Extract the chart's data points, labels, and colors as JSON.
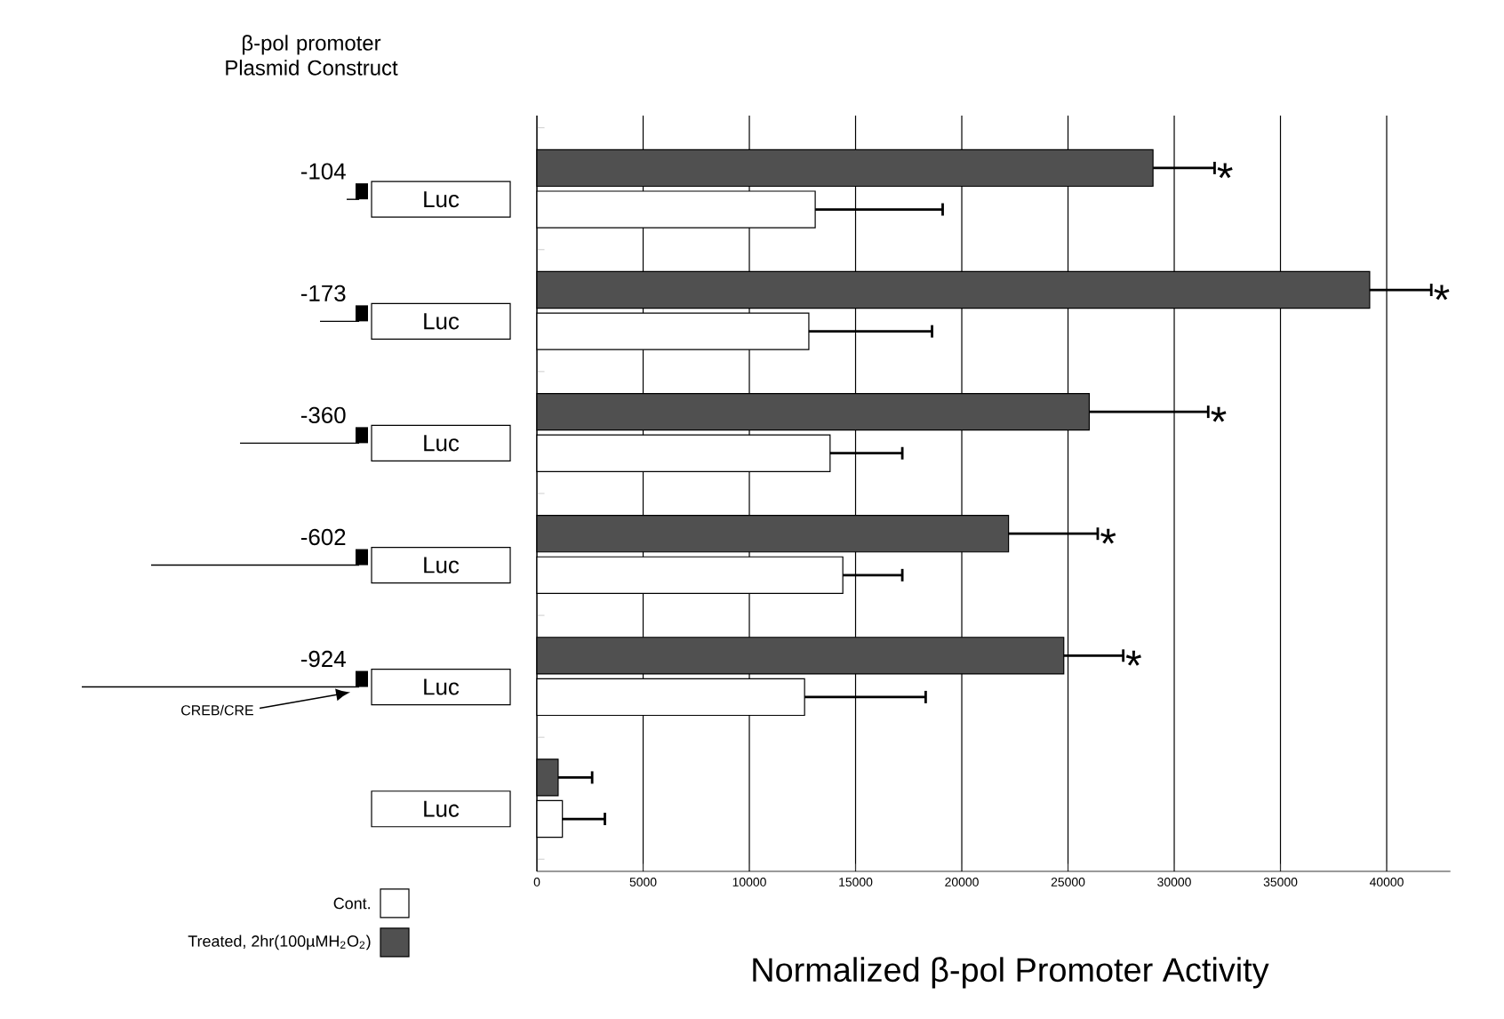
{
  "chart_data": {
    "type": "bar",
    "orientation": "horizontal",
    "xlabel": "Normalized β-pol Promoter Activity",
    "categories": [
      "-104",
      "-173",
      "-360",
      "-602",
      "-924",
      null
    ],
    "series": [
      {
        "name": "Cont.",
        "color": "#ffffff",
        "values": [
          13100,
          12800,
          13800,
          14400,
          12600,
          1200
        ],
        "errors": [
          6000,
          5800,
          3400,
          2800,
          5700,
          2000
        ]
      },
      {
        "name": "Treated, 2hr(100µMH$_{2}$O$_{2}$)",
        "color": "#505050",
        "values": [
          29000,
          39200,
          26000,
          22200,
          24800,
          1000
        ],
        "errors": [
          2900,
          2900,
          5600,
          4200,
          2800,
          1600
        ]
      }
    ],
    "xlim": [
      0,
      43000
    ],
    "xticks": [
      0,
      5000,
      10000,
      15000,
      20000,
      25000,
      30000,
      35000,
      40000
    ],
    "grid": "x",
    "legend": "bottom left",
    "annotations": [
      "β-pol promoter Plasmid Construct",
      "CREB/CRE",
      "Luc",
      "Luc",
      "Luc",
      "Luc",
      "Luc",
      "Luc",
      "*",
      "*",
      "*",
      "*",
      "*"
    ]
  }
}
